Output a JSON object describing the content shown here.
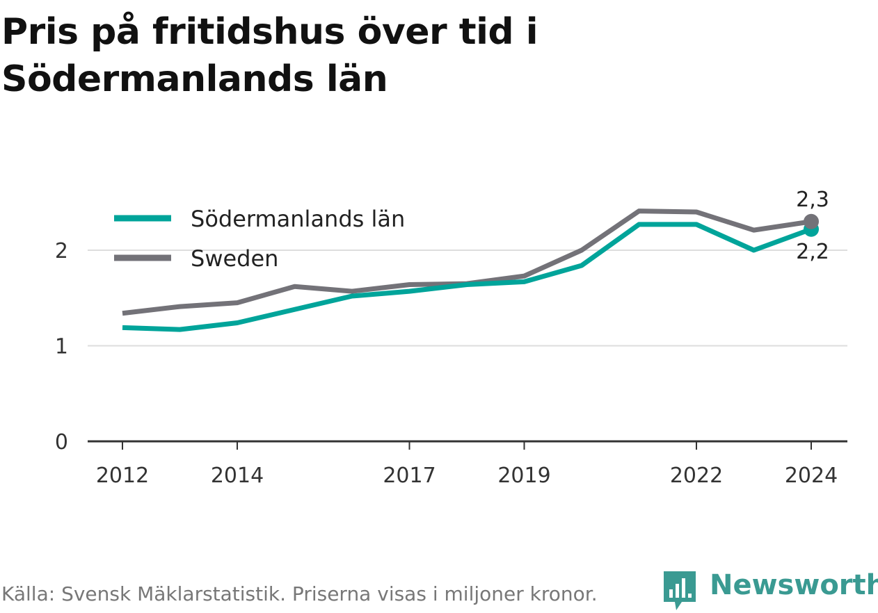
{
  "title": "Pris på fritidshus över tid i Södermanlands län",
  "footer": "Källa: Svensk Mäklarstatistik. Priserna visas i miljoner kronor.",
  "brand": {
    "name": "Newsworthy",
    "icon": "newsworthy-logo-icon",
    "color": "#3a9a92"
  },
  "chart_data": {
    "type": "line",
    "x": [
      2012,
      2013,
      2014,
      2015,
      2016,
      2017,
      2018,
      2019,
      2020,
      2021,
      2022,
      2023,
      2024
    ],
    "x_ticks": [
      2012,
      2014,
      2017,
      2019,
      2022,
      2024
    ],
    "y_ticks": [
      0,
      1,
      2
    ],
    "ylim": [
      0,
      2.6
    ],
    "grid": true,
    "legend_position": "top-left",
    "series": [
      {
        "name": "Södermanlands län",
        "color": "#00a49a",
        "values": [
          1.19,
          1.17,
          1.24,
          1.38,
          1.52,
          1.57,
          1.64,
          1.67,
          1.84,
          2.27,
          2.27,
          2.0,
          2.22
        ],
        "end_label": "2,2"
      },
      {
        "name": "Sweden",
        "color": "#737278",
        "values": [
          1.34,
          1.41,
          1.45,
          1.62,
          1.57,
          1.64,
          1.65,
          1.73,
          2.0,
          2.41,
          2.4,
          2.21,
          2.3
        ],
        "end_label": "2,3"
      }
    ]
  }
}
